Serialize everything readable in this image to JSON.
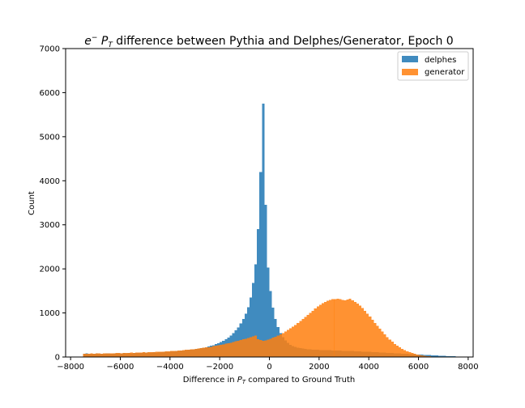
{
  "chart_data": {
    "type": "histogram",
    "title": {
      "prefix": "e",
      "sup": "−",
      "mid": " P",
      "sub": "T",
      "rest": " difference between Pythia and Delphes/Generator, Epoch 0"
    },
    "xlabel": {
      "prefix": "Difference in ",
      "p": "P",
      "sub": "T",
      "rest": " compared to Ground Truth"
    },
    "ylabel": "Count",
    "xlim": [
      -8200,
      8200
    ],
    "ylim": [
      0,
      7000
    ],
    "xticks": [
      -8000,
      -6000,
      -4000,
      -2000,
      0,
      2000,
      4000,
      6000,
      8000
    ],
    "xtick_labels": [
      "−8000",
      "−6000",
      "−4000",
      "−2000",
      "0",
      "2000",
      "4000",
      "6000",
      "8000"
    ],
    "yticks": [
      0,
      1000,
      2000,
      3000,
      4000,
      5000,
      6000,
      7000
    ],
    "ytick_labels": [
      "0",
      "1000",
      "2000",
      "3000",
      "4000",
      "5000",
      "6000",
      "7000"
    ],
    "legend_position": "top-right",
    "bin_start": -7500,
    "bin_width": 100,
    "series": [
      {
        "name": "delphes",
        "color": "#1f77b4",
        "values": [
          75,
          80,
          74,
          76,
          70,
          80,
          76,
          78,
          75,
          80,
          82,
          77,
          85,
          81,
          84,
          86,
          88,
          84,
          90,
          87,
          92,
          95,
          93,
          96,
          99,
          97,
          102,
          104,
          107,
          105,
          112,
          114,
          116,
          120,
          123,
          127,
          131,
          135,
          140,
          145,
          150,
          156,
          162,
          168,
          175,
          183,
          192,
          201,
          212,
          224,
          238,
          253,
          270,
          290,
          312,
          338,
          368,
          402,
          441,
          487,
          540,
          602,
          675,
          761,
          864,
          985,
          1130,
          1350,
          1680,
          2100,
          2900,
          4200,
          5750,
          3450,
          2030,
          1500,
          1120,
          860,
          680,
          545,
          448,
          375,
          320,
          280,
          250,
          228,
          212,
          200,
          191,
          184,
          178,
          173,
          169,
          166,
          163,
          160,
          158,
          156,
          154,
          152,
          150,
          148,
          146,
          144,
          142,
          140,
          138,
          136,
          134,
          132,
          130,
          127,
          124,
          121,
          118,
          115,
          112,
          109,
          106,
          103,
          100,
          97,
          94,
          91,
          88,
          85,
          82,
          79,
          76,
          73,
          70,
          67,
          64,
          61,
          58,
          55,
          52,
          49,
          46,
          43,
          40,
          37,
          34,
          31,
          28,
          25,
          22,
          20,
          18,
          16
        ]
      },
      {
        "name": "generator",
        "color": "#ff7f0e",
        "values": [
          75,
          78,
          74,
          80,
          76,
          79,
          82,
          78,
          85,
          80,
          83,
          87,
          84,
          88,
          90,
          86,
          92,
          95,
          91,
          97,
          96,
          99,
          103,
          100,
          106,
          104,
          108,
          110,
          113,
          115,
          118,
          120,
          124,
          127,
          131,
          134,
          138,
          142,
          147,
          151,
          156,
          161,
          167,
          173,
          179,
          186,
          193,
          200,
          208,
          216,
          225,
          234,
          244,
          254,
          265,
          276,
          288,
          300,
          313,
          326,
          340,
          354,
          369,
          384,
          400,
          417,
          434,
          452,
          470,
          489,
          405,
          385,
          372,
          380,
          395,
          415,
          438,
          462,
          488,
          515,
          545,
          578,
          612,
          648,
          688,
          730,
          770,
          815,
          860,
          905,
          952,
          1000,
          1050,
          1100,
          1145,
          1185,
          1220,
          1250,
          1275,
          1295,
          1310,
          1315,
          1320,
          1310,
          1295,
          1285,
          1305,
          1320,
          1290,
          1250,
          1215,
          1165,
          1110,
          1050,
          985,
          915,
          845,
          775,
          705,
          640,
          575,
          510,
          450,
          395,
          345,
          298,
          255,
          218,
          185,
          155,
          128,
          106,
          88,
          72,
          58,
          46,
          36,
          28,
          22,
          17,
          13,
          10,
          8,
          6,
          5,
          4,
          3,
          2,
          2,
          1,
          1,
          1,
          0,
          0
        ]
      }
    ]
  }
}
